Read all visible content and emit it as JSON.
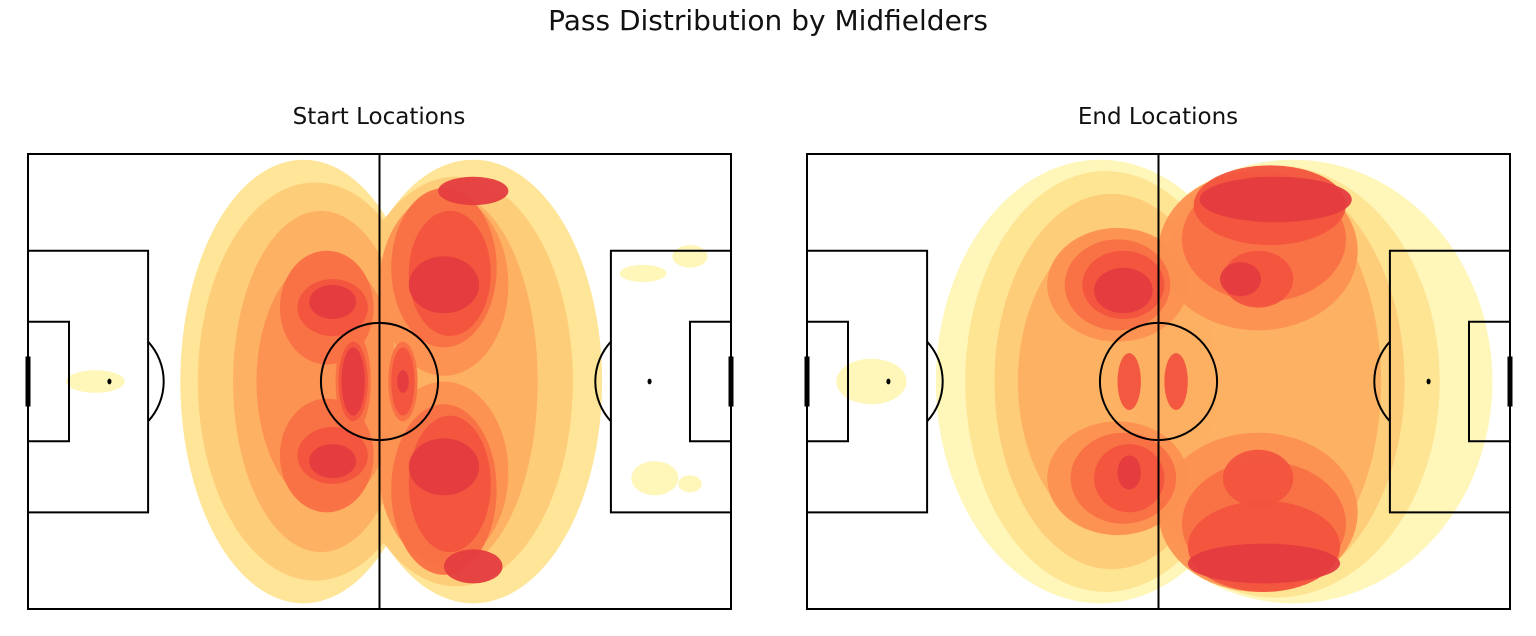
{
  "chart_data": {
    "type": "heatmap",
    "title": "Pass Distribution by Midfielders",
    "xlim": [
      0,
      120
    ],
    "ylim": [
      0,
      80
    ],
    "colors": [
      "#fff5b6",
      "#fee491",
      "#fecb77",
      "#fdb062",
      "#fc9151",
      "#f97045",
      "#f2533e",
      "#e43c3f",
      "#ce2e49"
    ],
    "panels": [
      {
        "title": "Start Locations",
        "clusters": [
          {
            "x": 11.5,
            "y": 40,
            "rx": 5,
            "ry": 2,
            "level": 1
          },
          {
            "x": 47,
            "y": 40,
            "rx": 21,
            "ry": 39,
            "level": 2
          },
          {
            "x": 76,
            "y": 40,
            "rx": 22,
            "ry": 39,
            "level": 2
          },
          {
            "x": 49,
            "y": 40,
            "rx": 20,
            "ry": 35,
            "level": 3
          },
          {
            "x": 73,
            "y": 40,
            "rx": 20,
            "ry": 36,
            "level": 3
          },
          {
            "x": 50,
            "y": 40,
            "rx": 15,
            "ry": 30,
            "level": 4
          },
          {
            "x": 72,
            "y": 40,
            "rx": 15,
            "ry": 33,
            "level": 4
          },
          {
            "x": 51,
            "y": 40,
            "rx": 12,
            "ry": 22,
            "level": 5
          },
          {
            "x": 71,
            "y": 56,
            "rx": 11,
            "ry": 16,
            "level": 5
          },
          {
            "x": 71,
            "y": 23,
            "rx": 11,
            "ry": 16,
            "level": 5
          },
          {
            "x": 51,
            "y": 53,
            "rx": 8,
            "ry": 10,
            "level": 6
          },
          {
            "x": 51,
            "y": 27,
            "rx": 8,
            "ry": 10,
            "level": 6
          },
          {
            "x": 71,
            "y": 59,
            "rx": 9,
            "ry": 15,
            "level": 6
          },
          {
            "x": 71,
            "y": 20,
            "rx": 9,
            "ry": 14,
            "level": 6
          },
          {
            "x": 55.5,
            "y": 40,
            "rx": 3,
            "ry": 9,
            "level": 6
          },
          {
            "x": 64,
            "y": 40,
            "rx": 2.5,
            "ry": 7,
            "level": 6
          },
          {
            "x": 52,
            "y": 53,
            "rx": 6,
            "ry": 5,
            "level": 7
          },
          {
            "x": 52,
            "y": 27,
            "rx": 6,
            "ry": 5,
            "level": 7
          },
          {
            "x": 72,
            "y": 58,
            "rx": 7,
            "ry": 12,
            "level": 7
          },
          {
            "x": 72,
            "y": 21,
            "rx": 7,
            "ry": 11,
            "level": 7
          },
          {
            "x": 55.5,
            "y": 40,
            "rx": 2.5,
            "ry": 7,
            "level": 7
          },
          {
            "x": 64,
            "y": 40,
            "rx": 2,
            "ry": 6,
            "level": 7
          },
          {
            "x": 52,
            "y": 54,
            "rx": 4,
            "ry": 3,
            "level": 8
          },
          {
            "x": 52,
            "y": 26,
            "rx": 4,
            "ry": 3,
            "level": 8
          },
          {
            "x": 71,
            "y": 55,
            "rx": 6,
            "ry": 5,
            "level": 8
          },
          {
            "x": 71,
            "y": 23,
            "rx": 6,
            "ry": 5,
            "level": 8
          },
          {
            "x": 76,
            "y": 72.5,
            "rx": 5,
            "ry": 3,
            "level": 8
          },
          {
            "x": 76,
            "y": 6.5,
            "rx": 6,
            "ry": 2.5,
            "level": 8
          },
          {
            "x": 55.5,
            "y": 40,
            "rx": 2,
            "ry": 6,
            "level": 8
          },
          {
            "x": 64,
            "y": 40,
            "rx": 1,
            "ry": 2,
            "level": 8
          },
          {
            "x": 107,
            "y": 57,
            "rx": 4,
            "ry": 3,
            "level": 1
          },
          {
            "x": 113,
            "y": 58,
            "rx": 2,
            "ry": 1.5,
            "level": 1
          },
          {
            "x": 113,
            "y": 18,
            "rx": 3,
            "ry": 2,
            "level": 1
          },
          {
            "x": 105,
            "y": 21,
            "rx": 4,
            "ry": 1.5,
            "level": 1
          }
        ]
      },
      {
        "title": "End Locations",
        "clusters": [
          {
            "x": 11,
            "y": 40,
            "rx": 6,
            "ry": 4,
            "level": 1
          },
          {
            "x": 50,
            "y": 40,
            "rx": 28,
            "ry": 39,
            "level": 1
          },
          {
            "x": 83,
            "y": 40,
            "rx": 34,
            "ry": 39,
            "level": 1
          },
          {
            "x": 51,
            "y": 40,
            "rx": 24,
            "ry": 37,
            "level": 2
          },
          {
            "x": 80,
            "y": 40,
            "rx": 28,
            "ry": 38,
            "level": 2
          },
          {
            "x": 52,
            "y": 40,
            "rx": 20,
            "ry": 33,
            "level": 3
          },
          {
            "x": 78,
            "y": 40,
            "rx": 24,
            "ry": 37,
            "level": 3
          },
          {
            "x": 53,
            "y": 40,
            "rx": 17,
            "ry": 27,
            "level": 4
          },
          {
            "x": 77,
            "y": 40,
            "rx": 21,
            "ry": 36,
            "level": 4
          },
          {
            "x": 53,
            "y": 57,
            "rx": 12,
            "ry": 10,
            "level": 5
          },
          {
            "x": 53,
            "y": 23,
            "rx": 12,
            "ry": 10,
            "level": 5
          },
          {
            "x": 77,
            "y": 63,
            "rx": 17,
            "ry": 14,
            "level": 5
          },
          {
            "x": 77,
            "y": 17,
            "rx": 17,
            "ry": 14,
            "level": 5
          },
          {
            "x": 54,
            "y": 57,
            "rx": 9,
            "ry": 8,
            "level": 6
          },
          {
            "x": 53,
            "y": 23,
            "rx": 9,
            "ry": 8,
            "level": 6
          },
          {
            "x": 78,
            "y": 65,
            "rx": 14,
            "ry": 11,
            "level": 6
          },
          {
            "x": 78,
            "y": 15,
            "rx": 14,
            "ry": 11,
            "level": 6
          },
          {
            "x": 55,
            "y": 57,
            "rx": 6,
            "ry": 6,
            "level": 7
          },
          {
            "x": 54,
            "y": 23,
            "rx": 7,
            "ry": 6,
            "level": 7
          },
          {
            "x": 78,
            "y": 69,
            "rx": 13,
            "ry": 8,
            "level": 7
          },
          {
            "x": 79,
            "y": 9,
            "rx": 13,
            "ry": 7,
            "level": 7
          },
          {
            "x": 77,
            "y": 22,
            "rx": 6,
            "ry": 5,
            "level": 7
          },
          {
            "x": 77,
            "y": 57,
            "rx": 6,
            "ry": 5,
            "level": 7
          },
          {
            "x": 55,
            "y": 56,
            "rx": 2,
            "ry": 3,
            "level": 8
          },
          {
            "x": 54,
            "y": 24,
            "rx": 5,
            "ry": 4,
            "level": 8
          },
          {
            "x": 78,
            "y": 72,
            "rx": 13,
            "ry": 3.5,
            "level": 8
          },
          {
            "x": 80,
            "y": 8,
            "rx": 13,
            "ry": 4,
            "level": 8
          },
          {
            "x": 74,
            "y": 22,
            "rx": 3.5,
            "ry": 3,
            "level": 8
          },
          {
            "x": 55,
            "y": 40,
            "rx": 2,
            "ry": 5,
            "level": 7
          },
          {
            "x": 63,
            "y": 40,
            "rx": 2,
            "ry": 5,
            "level": 7
          }
        ]
      }
    ]
  }
}
